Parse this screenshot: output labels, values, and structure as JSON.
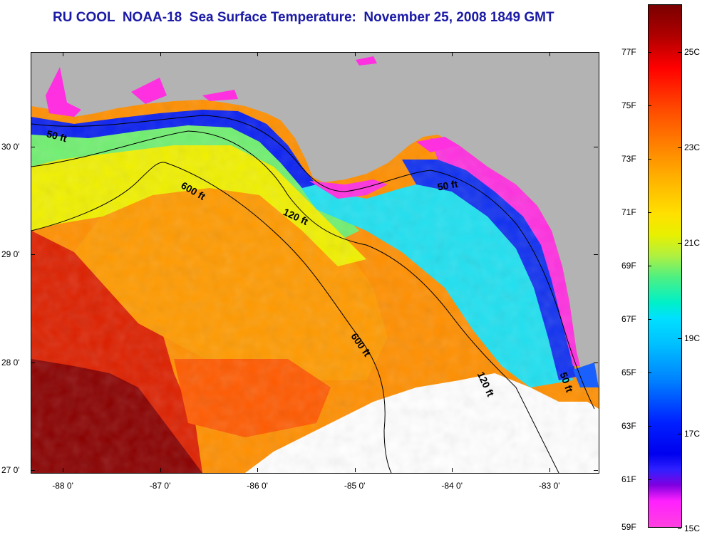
{
  "title": "RU COOL  NOAA-18  Sea Surface Temperature:  November 25, 2008 1849 GMT",
  "map": {
    "lon_range": [
      -88.33,
      -82.5
    ],
    "lat_range": [
      26.98,
      30.88
    ],
    "lon_ticks": [
      {
        "value": -88,
        "label": "-88 0'"
      },
      {
        "value": -87,
        "label": "-87 0'"
      },
      {
        "value": -86,
        "label": "-86 0'"
      },
      {
        "value": -85,
        "label": "-85 0'"
      },
      {
        "value": -84,
        "label": "-84 0'"
      },
      {
        "value": -83,
        "label": "-83 0'"
      }
    ],
    "lat_ticks": [
      {
        "value": 30,
        "label": "30 0'"
      },
      {
        "value": 29,
        "label": "29 0'"
      },
      {
        "value": 28,
        "label": "28 0'"
      },
      {
        "value": 27,
        "label": "27 0'"
      }
    ],
    "contour_labels": [
      {
        "text": "50 ft",
        "lon": -88.18,
        "lat": 30.1,
        "rotate": 15
      },
      {
        "text": "600 ft",
        "lon": -86.8,
        "lat": 29.63,
        "rotate": 30
      },
      {
        "text": "120 ft",
        "lon": -85.75,
        "lat": 29.38,
        "rotate": 25
      },
      {
        "text": "50 ft",
        "lon": -84.15,
        "lat": 29.6,
        "rotate": -10
      },
      {
        "text": "600 ft",
        "lon": -85.05,
        "lat": 28.25,
        "rotate": 55
      },
      {
        "text": "120 ft",
        "lon": -83.75,
        "lat": 27.9,
        "rotate": 65
      },
      {
        "text": "50 ft",
        "lon": -82.9,
        "lat": 27.9,
        "rotate": 70
      }
    ]
  },
  "colorbar": {
    "fahrenheit": [
      "77F",
      "75F",
      "73F",
      "71F",
      "69F",
      "67F",
      "65F",
      "63F",
      "61F",
      "59F"
    ],
    "celsius": [
      "25C",
      "23C",
      "21C",
      "19C",
      "17C",
      "15C"
    ],
    "colors": {
      "hot": "#7a0000",
      "warm": "#ff8a00",
      "mid": "#ffe000",
      "cool": "#00e0ff",
      "cold": "#0000ee",
      "coldest": "#ff40e0"
    }
  }
}
